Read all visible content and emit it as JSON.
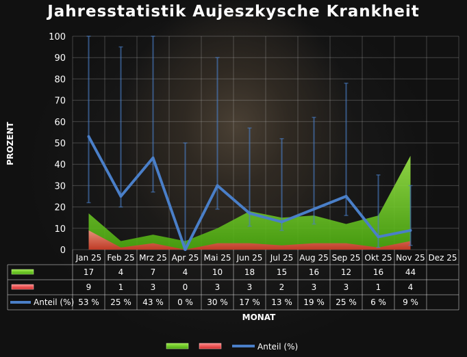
{
  "title": "Jahresstatistik Aujeszkysche Krankheit",
  "chart_data": {
    "type": "area",
    "title": "Jahresstatistik Aujeszkysche Krankheit",
    "xlabel": "MONAT",
    "ylabel": "PROZENT",
    "ylim": [
      0,
      100
    ],
    "y_ticks": [
      0,
      10,
      20,
      30,
      40,
      50,
      60,
      70,
      80,
      90,
      100
    ],
    "grid": true,
    "legend_position": "bottom",
    "categories": [
      "Jan 25",
      "Feb 25",
      "Mrz 25",
      "Apr 25",
      "Mai 25",
      "Jun 25",
      "Jul 25",
      "Aug 25",
      "Sep 25",
      "Okt 25",
      "Nov 25",
      "Dez 25"
    ],
    "series": [
      {
        "kind": "area",
        "color": "#7ed321",
        "values": [
          17,
          4,
          7,
          4,
          10,
          18,
          15,
          16,
          12,
          16,
          44,
          null
        ]
      },
      {
        "kind": "area",
        "color": "#e84a4a",
        "values": [
          9,
          1,
          3,
          0,
          3,
          3,
          2,
          3,
          3,
          1,
          4,
          null
        ]
      },
      {
        "name": "Anteil (%)",
        "kind": "line",
        "color": "#4a7fc8",
        "values": [
          53,
          25,
          43,
          0,
          30,
          17,
          13,
          19,
          25,
          6,
          9,
          null
        ],
        "labels": [
          "53 %",
          "25 %",
          "43 %",
          "0 %",
          "30 %",
          "17 %",
          "13 %",
          "19 %",
          "25 %",
          "6 %",
          "9 %",
          ""
        ],
        "error_low": [
          22,
          20,
          27,
          0,
          19,
          11,
          9,
          12,
          16,
          1,
          2,
          null
        ],
        "error_high": [
          100,
          95,
          100,
          50,
          90,
          57,
          52,
          62,
          78,
          35,
          30,
          null
        ]
      }
    ]
  }
}
